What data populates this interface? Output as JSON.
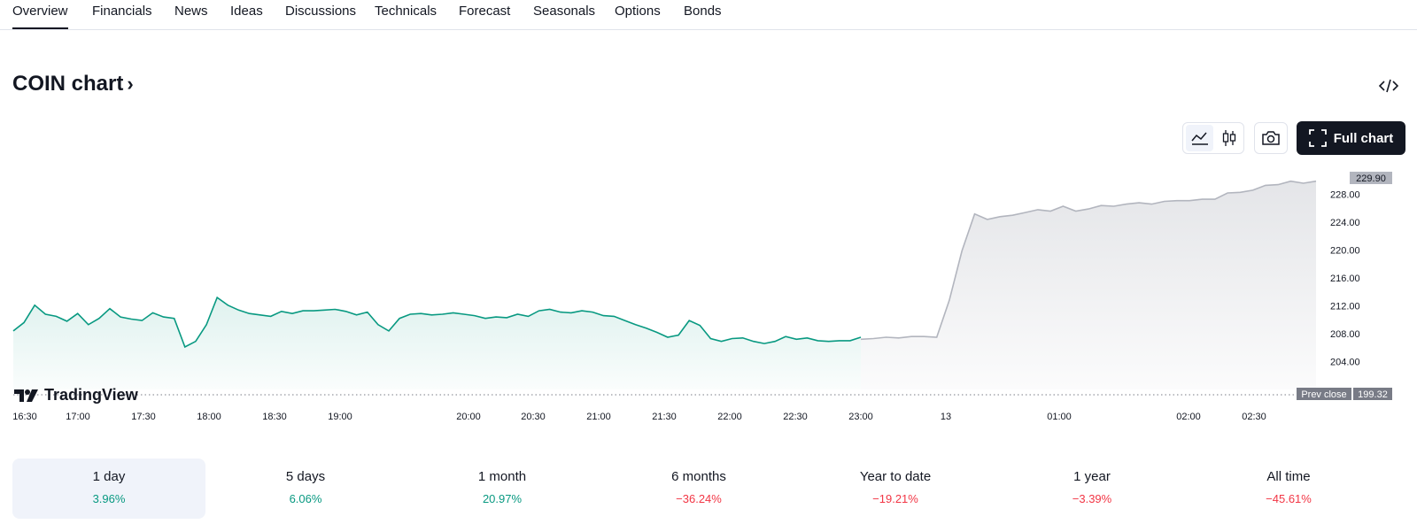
{
  "tabs": [
    "Overview",
    "Financials",
    "News",
    "Ideas",
    "Discussions",
    "Technicals",
    "Forecast",
    "Seasonals",
    "Options",
    "Bonds"
  ],
  "active_tab": "Overview",
  "title": "COIN chart",
  "title_chevron": "›",
  "toolbar": {
    "line_icon": "line-chart-icon",
    "candle_icon": "candlestick-icon",
    "camera_icon": "camera-icon",
    "full_chart_label": "Full chart",
    "embed_icon": "code-embed-icon"
  },
  "logo_text": "TradingView",
  "chart_data": {
    "type": "area",
    "ylim": [
      200,
      231
    ],
    "y_ticks": [
      "228.00",
      "224.00",
      "220.00",
      "216.00",
      "212.00",
      "208.00",
      "204.00"
    ],
    "last_price_label": "229.90",
    "prev_close_label": "Prev close",
    "prev_close_value": "199.32",
    "x_ticks": [
      "16:30",
      "17:00",
      "17:30",
      "18:00",
      "18:30",
      "19:00",
      "20:00",
      "20:30",
      "21:00",
      "21:30",
      "22:00",
      "22:30",
      "23:00",
      "13",
      "01:00",
      "02:00",
      "02:30"
    ],
    "series": [
      {
        "session": "regular",
        "color": "#089981",
        "values": [
          208.4,
          209.6,
          212.1,
          210.8,
          210.5,
          209.8,
          210.9,
          209.3,
          210.2,
          211.6,
          210.4,
          210.1,
          209.9,
          211.0,
          210.4,
          210.2,
          206.1,
          206.9,
          209.3,
          213.2,
          212.1,
          211.4,
          210.9,
          210.7,
          210.5,
          211.2,
          210.9,
          211.3,
          211.3,
          211.4,
          211.5,
          211.2,
          210.7,
          211.1,
          209.3,
          208.4,
          210.2,
          210.8,
          210.9,
          210.7,
          210.8,
          211.0,
          210.8,
          210.6,
          210.2,
          210.4,
          210.3,
          210.8,
          210.5,
          211.3,
          211.5,
          211.1,
          211.0,
          211.3,
          211.1,
          210.6,
          210.5,
          209.9,
          209.3,
          208.8,
          208.2,
          207.5,
          207.8,
          209.9,
          209.2,
          207.3,
          206.9,
          207.3,
          207.4,
          206.9,
          206.6,
          206.9,
          207.6,
          207.2,
          207.4,
          207.0,
          206.9,
          207.0,
          207.0,
          207.5
        ]
      },
      {
        "session": "extended",
        "color": "#b2b5be",
        "values": [
          207.2,
          207.3,
          207.5,
          207.4,
          207.6,
          207.6,
          207.5,
          212.8,
          219.9,
          225.2,
          224.4,
          224.8,
          225.0,
          225.4,
          225.8,
          225.6,
          226.3,
          225.6,
          225.9,
          226.4,
          226.3,
          226.6,
          226.8,
          226.6,
          227.0,
          227.1,
          227.1,
          227.3,
          227.3,
          228.2,
          228.3,
          228.6,
          229.3,
          229.4,
          229.9,
          229.6,
          229.9
        ]
      }
    ]
  },
  "periods": [
    {
      "label": "1 day",
      "value": "3.96%",
      "sign": "pos",
      "active": true
    },
    {
      "label": "5 days",
      "value": "6.06%",
      "sign": "pos",
      "active": false
    },
    {
      "label": "1 month",
      "value": "20.97%",
      "sign": "pos",
      "active": false
    },
    {
      "label": "6 months",
      "value": "−36.24%",
      "sign": "neg",
      "active": false
    },
    {
      "label": "Year to date",
      "value": "−19.21%",
      "sign": "neg",
      "active": false
    },
    {
      "label": "1 year",
      "value": "−3.39%",
      "sign": "neg",
      "active": false
    },
    {
      "label": "All time",
      "value": "−45.61%",
      "sign": "neg",
      "active": false
    }
  ]
}
